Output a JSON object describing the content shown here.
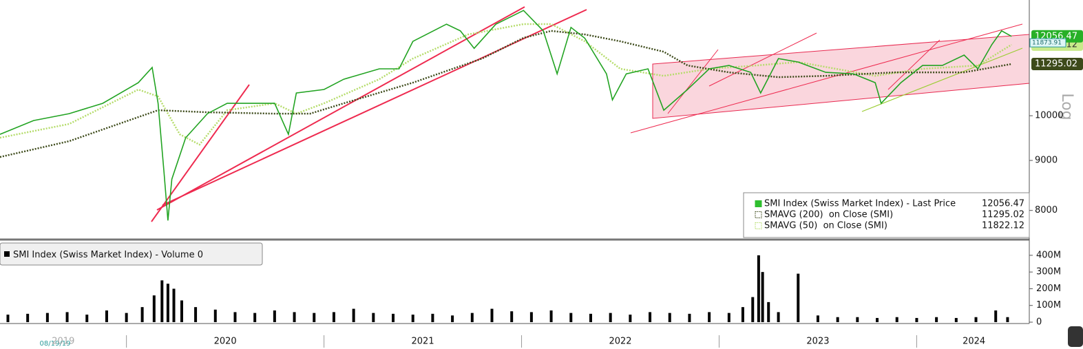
{
  "chart_data": [
    {
      "type": "line",
      "log_scale": true,
      "xlim": [
        2019.36,
        2024.57
      ],
      "ylim": [
        7506,
        13134
      ],
      "yticks": [
        8000,
        9000,
        10000
      ],
      "y_scale_label": "Log",
      "crosshair_value": 11873.91,
      "series": [
        {
          "name": "SMI Index (Swiss Market Index) - Last Price",
          "color": "#21a321",
          "legend_color": "#2fbf2f",
          "last_value": 12056.47,
          "x": [
            2019.36,
            2019.53,
            2019.71,
            2019.88,
            2020.06,
            2020.13,
            2020.16,
            2020.19,
            2020.21,
            2020.23,
            2020.3,
            2020.41,
            2020.51,
            2020.61,
            2020.75,
            2020.82,
            2020.86,
            2021.0,
            2021.1,
            2021.28,
            2021.38,
            2021.45,
            2021.62,
            2021.69,
            2021.76,
            2021.87,
            2022.01,
            2022.11,
            2022.18,
            2022.25,
            2022.32,
            2022.43,
            2022.46,
            2022.53,
            2022.64,
            2022.72,
            2022.84,
            2022.95,
            2023.05,
            2023.16,
            2023.21,
            2023.3,
            2023.4,
            2023.54,
            2023.68,
            2023.79,
            2023.82,
            2023.92,
            2024.03,
            2024.13,
            2024.24,
            2024.31,
            2024.38,
            2024.43,
            2024.48
          ],
          "values": [
            9571,
            9887,
            10049,
            10296,
            10810,
            11204,
            10296,
            8755,
            7813,
            8613,
            9494,
            10049,
            10296,
            10296,
            10296,
            9571,
            10550,
            10637,
            10897,
            11167,
            11167,
            11914,
            12407,
            12214,
            11721,
            12407,
            12814,
            12214,
            11036,
            12314,
            12003,
            11036,
            10380,
            11036,
            11167,
            10130,
            10637,
            11167,
            11256,
            11075,
            10550,
            11441,
            11349,
            11075,
            11036,
            10810,
            10296,
            10810,
            11256,
            11256,
            11535,
            11167,
            11822,
            12214,
            12056.47
          ]
        },
        {
          "name": "SMAVG (200)  on Close (SMI)",
          "color": "#3d4a1a",
          "legend_color": "#3d4a1a",
          "last_value": 11295.02,
          "x": [
            2019.36,
            2019.71,
            2020.06,
            2020.16,
            2020.41,
            2020.75,
            2020.93,
            2021.1,
            2021.45,
            2021.8,
            2022.01,
            2022.15,
            2022.32,
            2022.5,
            2022.72,
            2022.84,
            2023.05,
            2023.3,
            2023.54,
            2023.89,
            2024.24,
            2024.48
          ],
          "values": [
            9073,
            9417,
            9968,
            10131,
            10081,
            10049,
            10049,
            10296,
            10810,
            11441,
            12014,
            12211,
            12112,
            11916,
            11627,
            11257,
            11076,
            10950,
            10985,
            11076,
            11076,
            11295.02
          ]
        },
        {
          "name": "SMAVG (50)  on Close (SMI)",
          "color": "#b5dc6a",
          "legend_color": "#b5dc6a",
          "last_value": 11822.12,
          "x": [
            2019.36,
            2019.71,
            2020.06,
            2020.16,
            2020.27,
            2020.37,
            2020.51,
            2020.75,
            2020.86,
            2021.0,
            2021.28,
            2021.45,
            2021.73,
            2022.01,
            2022.15,
            2022.32,
            2022.5,
            2022.72,
            2022.95,
            2023.19,
            2023.4,
            2023.79,
            2024.03,
            2024.31,
            2024.48
          ],
          "values": [
            9494,
            9807,
            10635,
            10465,
            9571,
            9342,
            10130,
            10296,
            10049,
            10296,
            10897,
            11441,
            12112,
            12410,
            12410,
            11916,
            11167,
            10985,
            11167,
            11257,
            11349,
            10985,
            11167,
            11257,
            11822.12
          ]
        }
      ]
    },
    {
      "type": "bar",
      "xlim": [
        2019.36,
        2024.57
      ],
      "ylim": [
        0,
        486000000
      ],
      "yticks": [
        0,
        {
          "value": 100000000,
          "label": "100M"
        },
        {
          "value": 200000000,
          "label": "200M"
        },
        {
          "value": 300000000,
          "label": "300M"
        },
        {
          "value": 400000000,
          "label": "400M"
        }
      ],
      "xticks": [
        {
          "value": 2019.68,
          "label": "2019"
        },
        {
          "value": 2020.5,
          "label": "2020"
        },
        {
          "value": 2021.5,
          "label": "2021"
        },
        {
          "value": 2022.5,
          "label": "2022"
        },
        {
          "value": 2023.5,
          "label": "2023"
        },
        {
          "value": 2024.29,
          "label": "2024"
        }
      ],
      "start_label": "08/19/19",
      "series": [
        {
          "name": "SMI Index (Swiss Market Index) - Volume",
          "color": "#000000",
          "last_value": 0,
          "x": [
            2019.4,
            2019.5,
            2019.6,
            2019.7,
            2019.8,
            2019.9,
            2020.0,
            2020.08,
            2020.14,
            2020.18,
            2020.21,
            2020.24,
            2020.28,
            2020.35,
            2020.45,
            2020.55,
            2020.65,
            2020.75,
            2020.85,
            2020.95,
            2021.05,
            2021.15,
            2021.25,
            2021.35,
            2021.45,
            2021.55,
            2021.65,
            2021.75,
            2021.85,
            2021.95,
            2022.05,
            2022.15,
            2022.25,
            2022.35,
            2022.45,
            2022.55,
            2022.65,
            2022.75,
            2022.85,
            2022.95,
            2023.05,
            2023.12,
            2023.17,
            2023.2,
            2023.22,
            2023.25,
            2023.3,
            2023.4,
            2023.5,
            2023.6,
            2023.7,
            2023.8,
            2023.9,
            2024.0,
            2024.1,
            2024.2,
            2024.3,
            2024.4,
            2024.46
          ],
          "values": [
            45000000,
            50000000,
            55000000,
            60000000,
            45000000,
            70000000,
            55000000,
            90000000,
            160000000,
            250000000,
            230000000,
            200000000,
            130000000,
            90000000,
            75000000,
            60000000,
            55000000,
            70000000,
            60000000,
            55000000,
            60000000,
            80000000,
            55000000,
            50000000,
            45000000,
            50000000,
            40000000,
            55000000,
            80000000,
            65000000,
            60000000,
            70000000,
            55000000,
            50000000,
            55000000,
            45000000,
            60000000,
            55000000,
            50000000,
            60000000,
            55000000,
            90000000,
            150000000,
            400000000,
            300000000,
            120000000,
            60000000,
            290000000,
            40000000,
            30000000,
            30000000,
            25000000,
            30000000,
            25000000,
            30000000,
            25000000,
            30000000,
            70000000,
            30000000
          ]
        }
      ]
    }
  ]
}
